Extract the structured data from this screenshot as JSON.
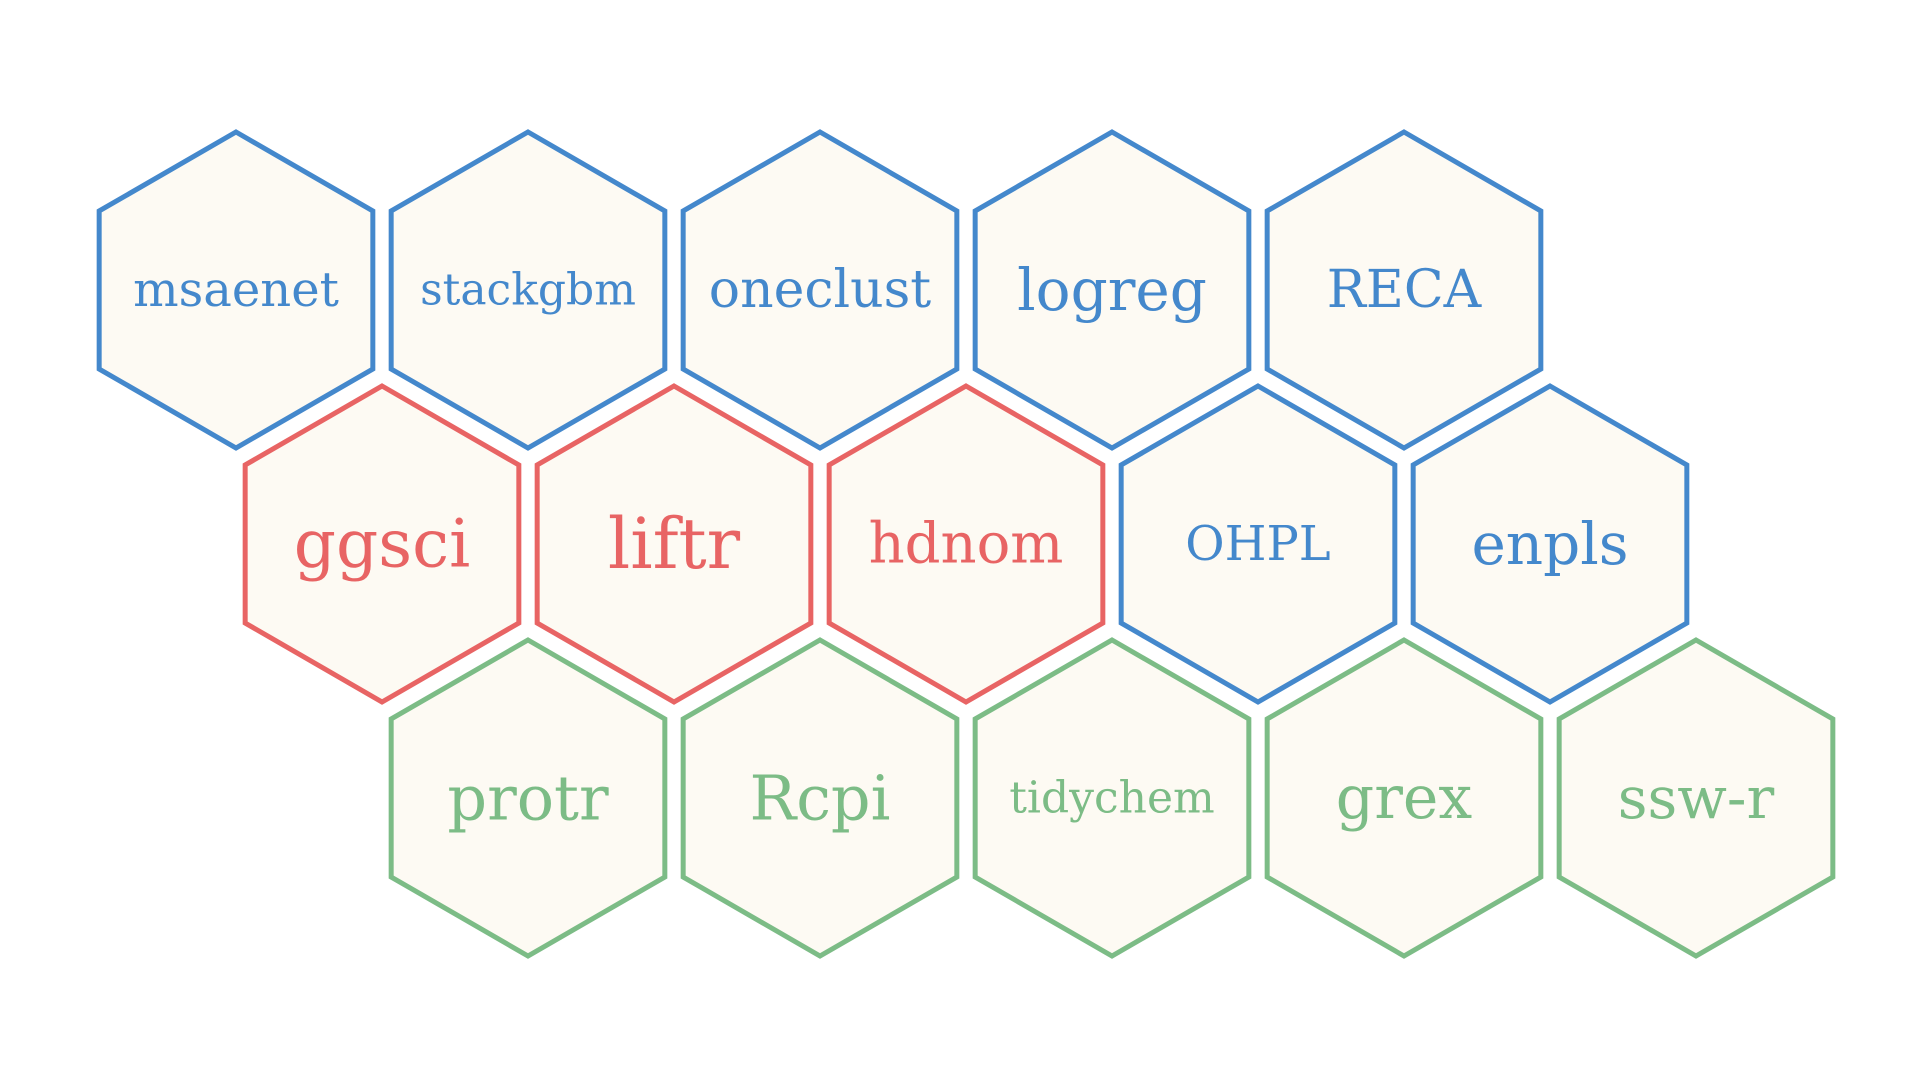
{
  "palette": {
    "blue": "#4488cc",
    "red": "#e86464",
    "green": "#7cbc86",
    "fill": "#fdfaf3"
  },
  "hexagons": [
    {
      "label": "msaenet",
      "color": "blue"
    },
    {
      "label": "stackgbm",
      "color": "blue"
    },
    {
      "label": "oneclust",
      "color": "blue"
    },
    {
      "label": "logreg",
      "color": "blue"
    },
    {
      "label": "RECA",
      "color": "blue"
    },
    {
      "label": "ggsci",
      "color": "red"
    },
    {
      "label": "liftr",
      "color": "red"
    },
    {
      "label": "hdnom",
      "color": "red"
    },
    {
      "label": "OHPL",
      "color": "blue"
    },
    {
      "label": "enpls",
      "color": "blue"
    },
    {
      "label": "protr",
      "color": "green"
    },
    {
      "label": "Rcpi",
      "color": "green"
    },
    {
      "label": "tidychem",
      "color": "green"
    },
    {
      "label": "grex",
      "color": "green"
    },
    {
      "label": "ssw-r",
      "color": "green"
    }
  ]
}
